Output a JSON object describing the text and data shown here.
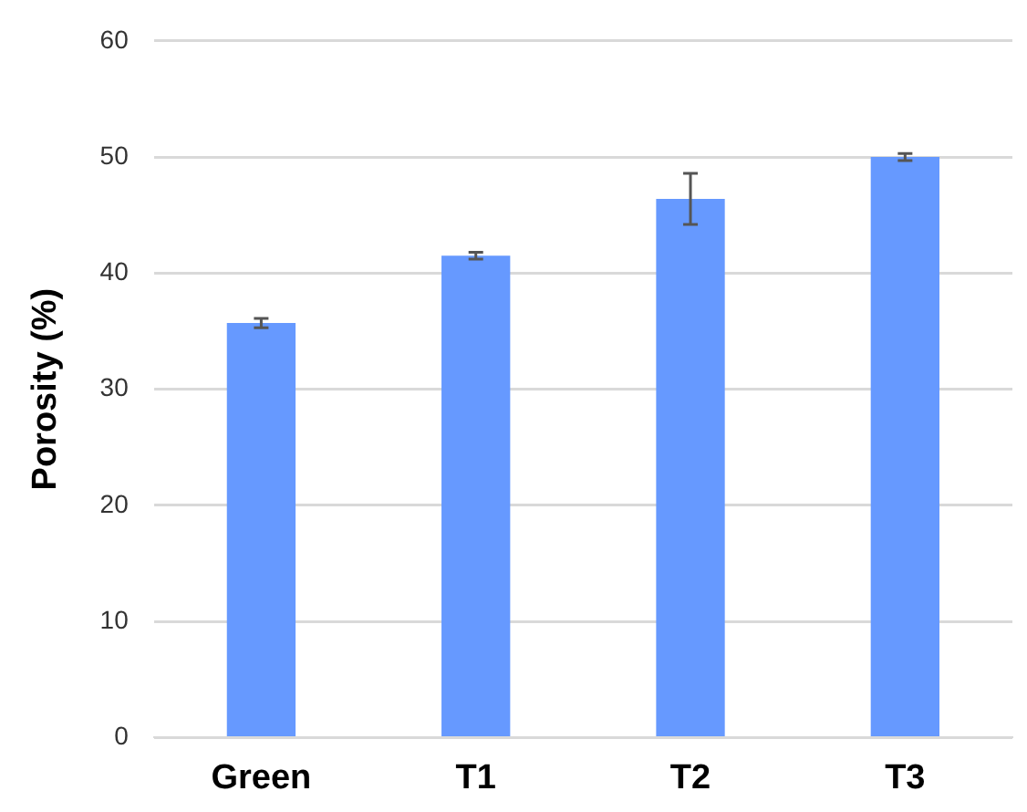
{
  "chart_data": {
    "type": "bar",
    "ylabel": "Porosity (%)",
    "categories": [
      "Green",
      "T1",
      "T2",
      "T3"
    ],
    "values": [
      35.7,
      41.5,
      46.4,
      50.0
    ],
    "errors": [
      0.4,
      0.3,
      2.2,
      0.3
    ],
    "color": "#6699ff",
    "ylim": [
      0,
      60
    ],
    "yticks": [
      0,
      10,
      20,
      30,
      40,
      50,
      60
    ],
    "grid": "y",
    "legend": false
  }
}
